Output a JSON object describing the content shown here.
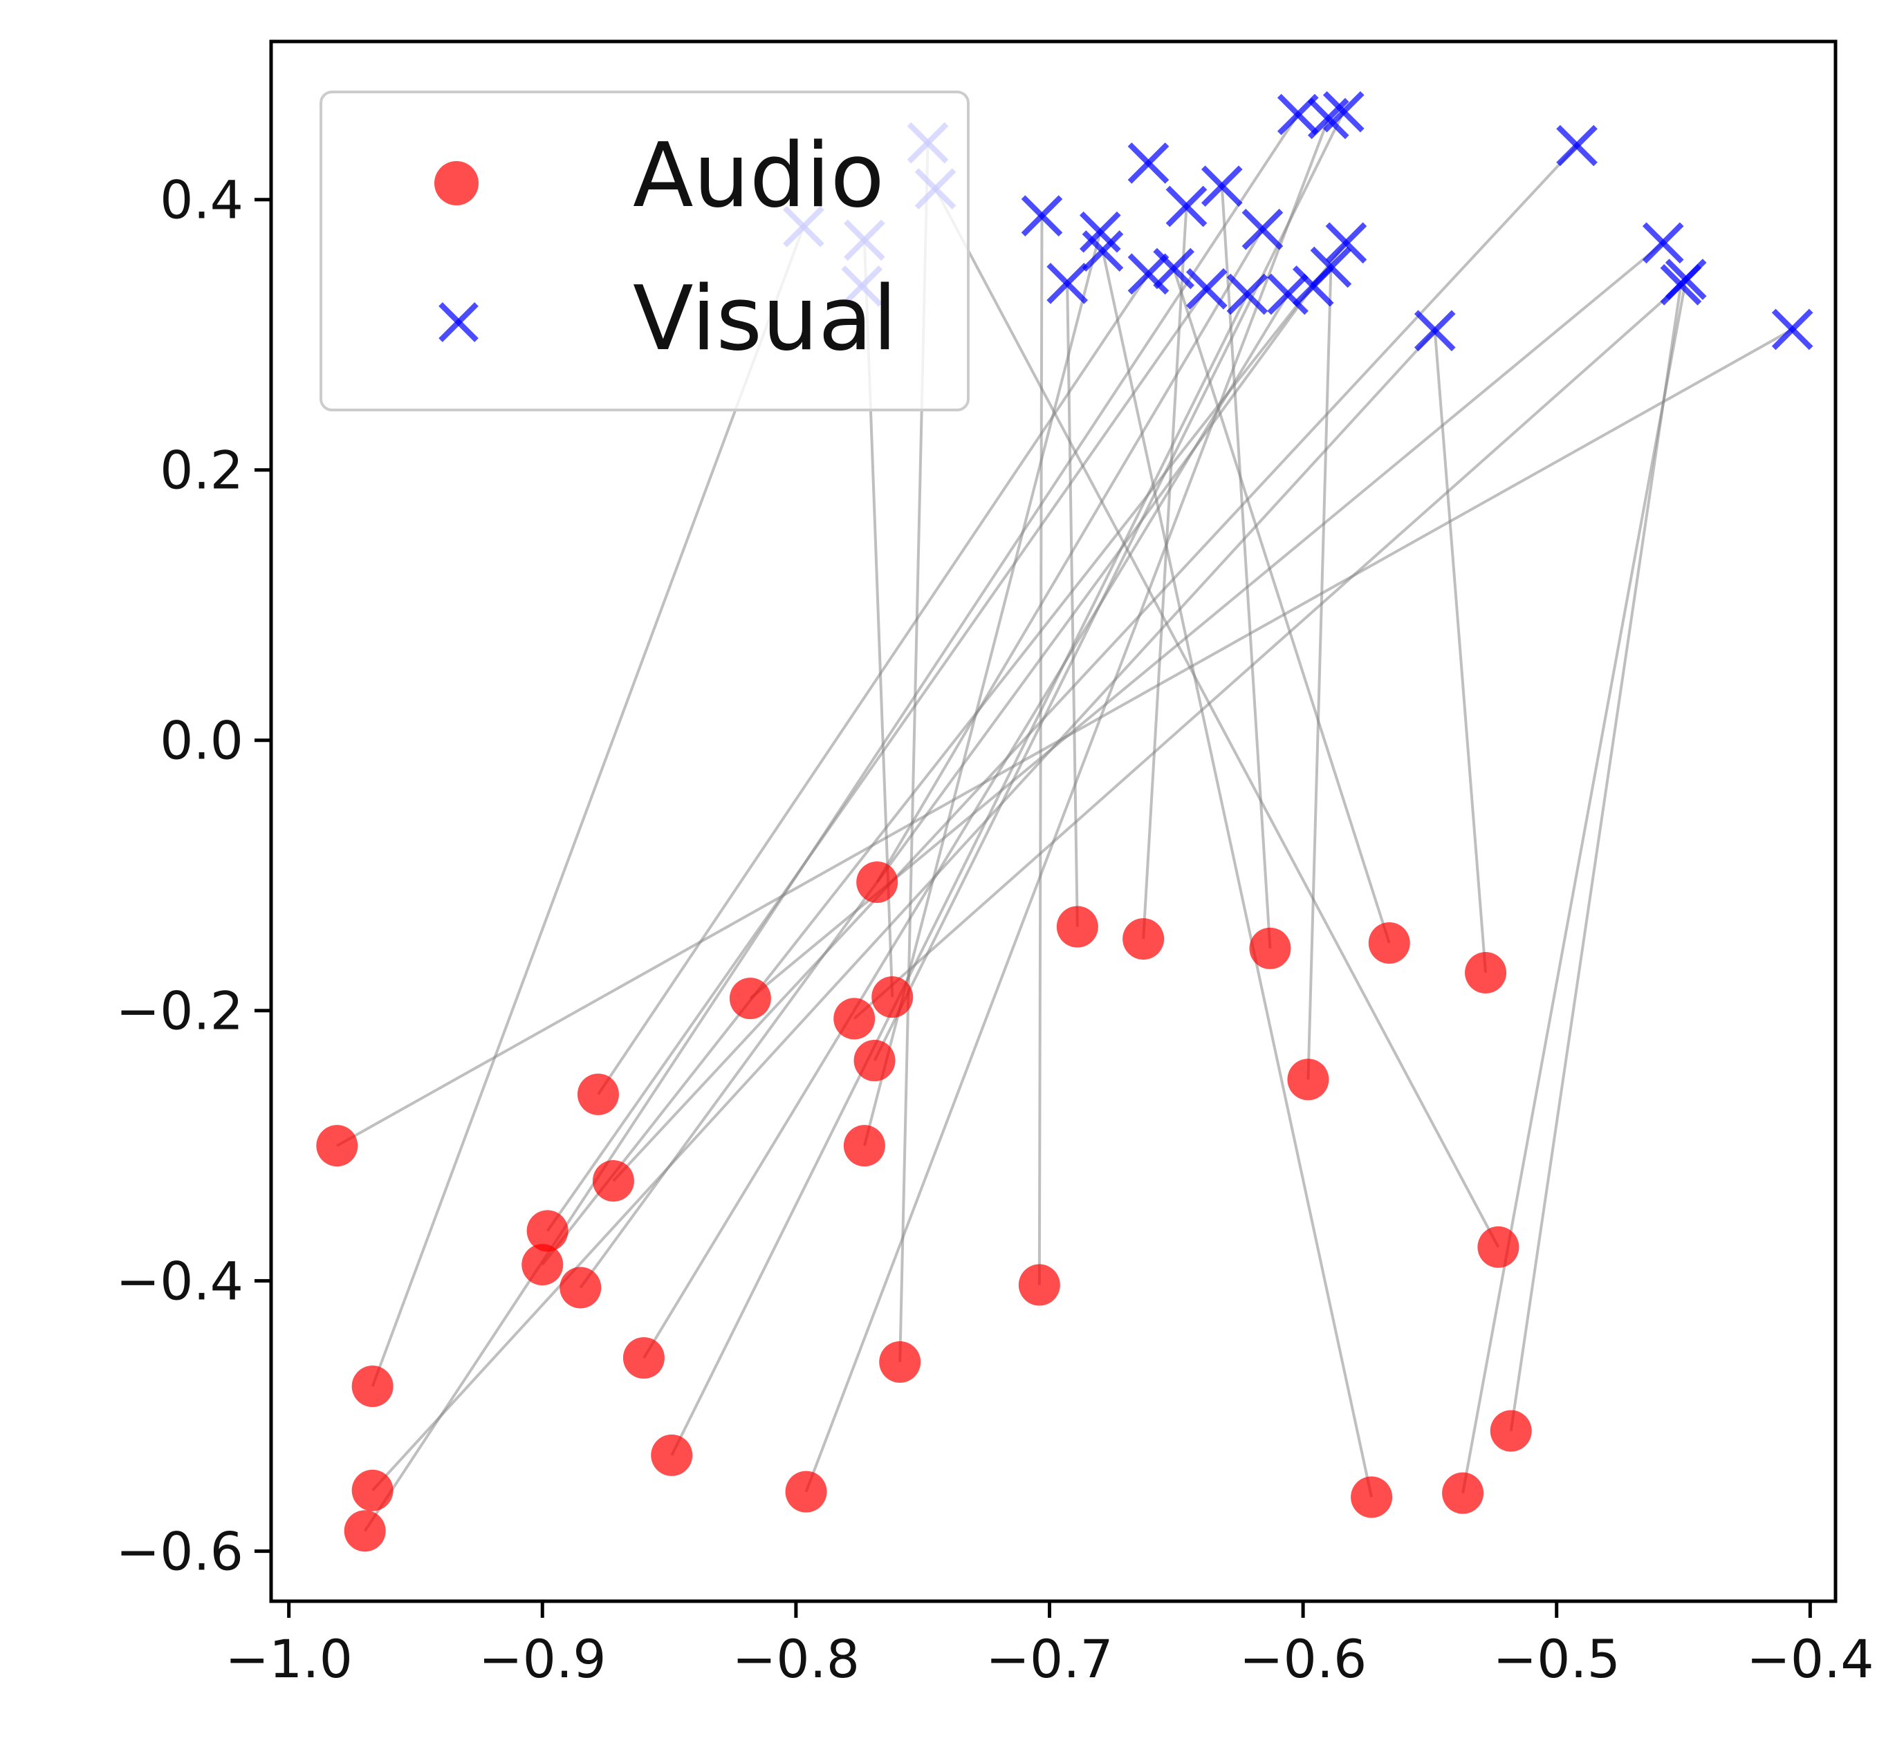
{
  "chart_data": {
    "type": "scatter",
    "title": "",
    "xlabel": "",
    "ylabel": "",
    "xlim": [
      -1.007,
      -0.39
    ],
    "ylim": [
      -0.637,
      0.517
    ],
    "xticks": [
      -1.0,
      -0.9,
      -0.8,
      -0.7,
      -0.6,
      -0.5,
      -0.4
    ],
    "xtick_labels": [
      "−1.0",
      "−0.9",
      "−0.8",
      "−0.7",
      "−0.6",
      "−0.5",
      "−0.4"
    ],
    "yticks": [
      -0.6,
      -0.4,
      -0.2,
      0.0,
      0.2,
      0.4
    ],
    "ytick_labels": [
      "−0.6",
      "−0.4",
      "−0.2",
      "0.0",
      "0.2",
      "0.4"
    ],
    "grid": false,
    "legend": {
      "position": "upper-left",
      "entries": [
        {
          "label": "Audio",
          "marker": "circle",
          "color": "#ff0000"
        },
        {
          "label": "Visual",
          "marker": "x",
          "color": "#0000ff"
        }
      ]
    },
    "series": [
      {
        "name": "Audio",
        "marker": "circle",
        "color": "#ff0000",
        "points": [
          [
            -0.981,
            -0.3
          ],
          [
            -0.967,
            -0.478
          ],
          [
            -0.967,
            -0.555
          ],
          [
            -0.97,
            -0.585
          ],
          [
            -0.898,
            -0.363
          ],
          [
            -0.9,
            -0.388
          ],
          [
            -0.885,
            -0.405
          ],
          [
            -0.878,
            -0.262
          ],
          [
            -0.872,
            -0.326
          ],
          [
            -0.86,
            -0.457
          ],
          [
            -0.849,
            -0.529
          ],
          [
            -0.818,
            -0.191
          ],
          [
            -0.796,
            -0.556
          ],
          [
            -0.777,
            -0.206
          ],
          [
            -0.769,
            -0.237
          ],
          [
            -0.773,
            -0.3
          ],
          [
            -0.768,
            -0.105
          ],
          [
            -0.762,
            -0.19
          ],
          [
            -0.759,
            -0.46
          ],
          [
            -0.704,
            -0.403
          ],
          [
            -0.689,
            -0.138
          ],
          [
            -0.663,
            -0.147
          ],
          [
            -0.613,
            -0.154
          ],
          [
            -0.598,
            -0.251
          ],
          [
            -0.573,
            -0.56
          ],
          [
            -0.566,
            -0.15
          ],
          [
            -0.537,
            -0.557
          ],
          [
            -0.528,
            -0.172
          ],
          [
            -0.523,
            -0.375
          ],
          [
            -0.518,
            -0.511
          ]
        ]
      },
      {
        "name": "Visual",
        "marker": "x",
        "color": "#0000ff",
        "points": [
          [
            -0.748,
            0.442
          ],
          [
            -0.745,
            0.408
          ],
          [
            -0.797,
            0.38
          ],
          [
            -0.773,
            0.37
          ],
          [
            -0.703,
            0.388
          ],
          [
            -0.693,
            0.338
          ],
          [
            -0.68,
            0.376
          ],
          [
            -0.679,
            0.362
          ],
          [
            -0.661,
            0.427
          ],
          [
            -0.661,
            0.345
          ],
          [
            -0.646,
            0.395
          ],
          [
            -0.651,
            0.349
          ],
          [
            -0.632,
            0.41
          ],
          [
            -0.638,
            0.334
          ],
          [
            -0.616,
            0.378
          ],
          [
            -0.622,
            0.33
          ],
          [
            -0.606,
            0.33
          ],
          [
            -0.602,
            0.463
          ],
          [
            -0.596,
            0.336
          ],
          [
            -0.59,
            0.46
          ],
          [
            -0.584,
            0.465
          ],
          [
            -0.589,
            0.35
          ],
          [
            -0.583,
            0.368
          ],
          [
            -0.548,
            0.303
          ],
          [
            -0.492,
            0.44
          ],
          [
            -0.458,
            0.368
          ],
          [
            -0.451,
            0.337
          ],
          [
            -0.449,
            0.341
          ],
          [
            -0.407,
            0.304
          ],
          [
            -0.774,
            0.336
          ]
        ]
      }
    ],
    "links": [
      [
        0,
        28
      ],
      [
        1,
        2
      ],
      [
        2,
        23
      ],
      [
        3,
        17
      ],
      [
        4,
        13
      ],
      [
        5,
        22
      ],
      [
        6,
        18
      ],
      [
        7,
        9
      ],
      [
        8,
        24
      ],
      [
        9,
        16
      ],
      [
        10,
        15
      ],
      [
        11,
        25
      ],
      [
        12,
        19
      ],
      [
        13,
        26
      ],
      [
        14,
        20
      ],
      [
        15,
        6
      ],
      [
        16,
        14
      ],
      [
        17,
        3
      ],
      [
        18,
        0
      ],
      [
        19,
        4
      ],
      [
        20,
        5
      ],
      [
        21,
        10
      ],
      [
        22,
        12
      ],
      [
        23,
        21
      ],
      [
        24,
        7
      ],
      [
        25,
        11
      ],
      [
        26,
        27
      ],
      [
        27,
        23
      ],
      [
        28,
        1
      ],
      [
        29,
        26
      ]
    ]
  }
}
